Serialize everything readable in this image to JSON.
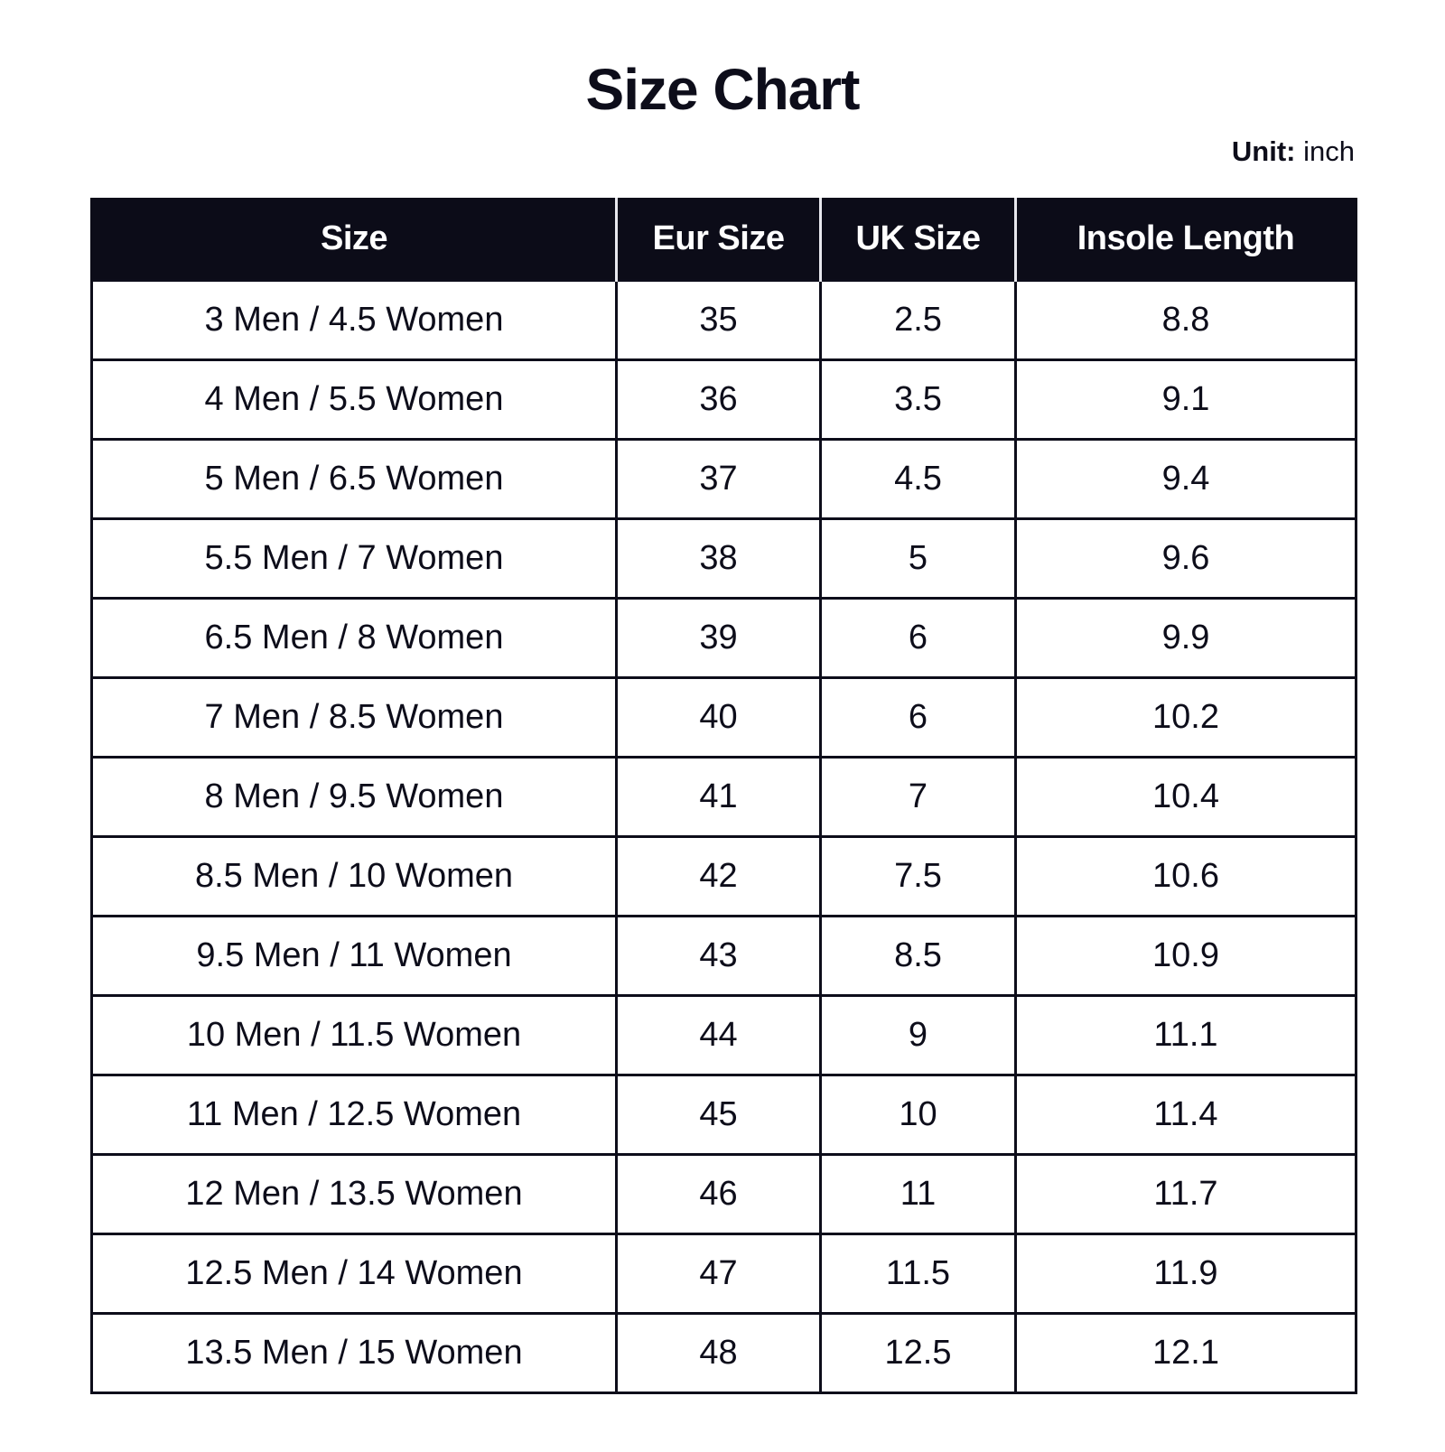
{
  "title": "Size Chart",
  "unit": {
    "label": "Unit:",
    "value": "inch"
  },
  "table": {
    "headers": [
      "Size",
      "Eur Size",
      "UK Size",
      "Insole Length"
    ],
    "rows": [
      [
        "3 Men / 4.5 Women",
        "35",
        "2.5",
        "8.8"
      ],
      [
        "4 Men / 5.5 Women",
        "36",
        "3.5",
        "9.1"
      ],
      [
        "5 Men / 6.5 Women",
        "37",
        "4.5",
        "9.4"
      ],
      [
        "5.5 Men / 7 Women",
        "38",
        "5",
        "9.6"
      ],
      [
        "6.5 Men / 8 Women",
        "39",
        "6",
        "9.9"
      ],
      [
        "7 Men / 8.5 Women",
        "40",
        "6",
        "10.2"
      ],
      [
        "8 Men / 9.5 Women",
        "41",
        "7",
        "10.4"
      ],
      [
        "8.5 Men / 10 Women",
        "42",
        "7.5",
        "10.6"
      ],
      [
        "9.5 Men / 11 Women",
        "43",
        "8.5",
        "10.9"
      ],
      [
        "10 Men / 11.5 Women",
        "44",
        "9",
        "11.1"
      ],
      [
        "11 Men / 12.5 Women",
        "45",
        "10",
        "11.4"
      ],
      [
        "12 Men / 13.5 Women",
        "46",
        "11",
        "11.7"
      ],
      [
        "12.5 Men / 14 Women",
        "47",
        "11.5",
        "11.9"
      ],
      [
        "13.5 Men / 15 Women",
        "48",
        "12.5",
        "12.1"
      ]
    ]
  }
}
